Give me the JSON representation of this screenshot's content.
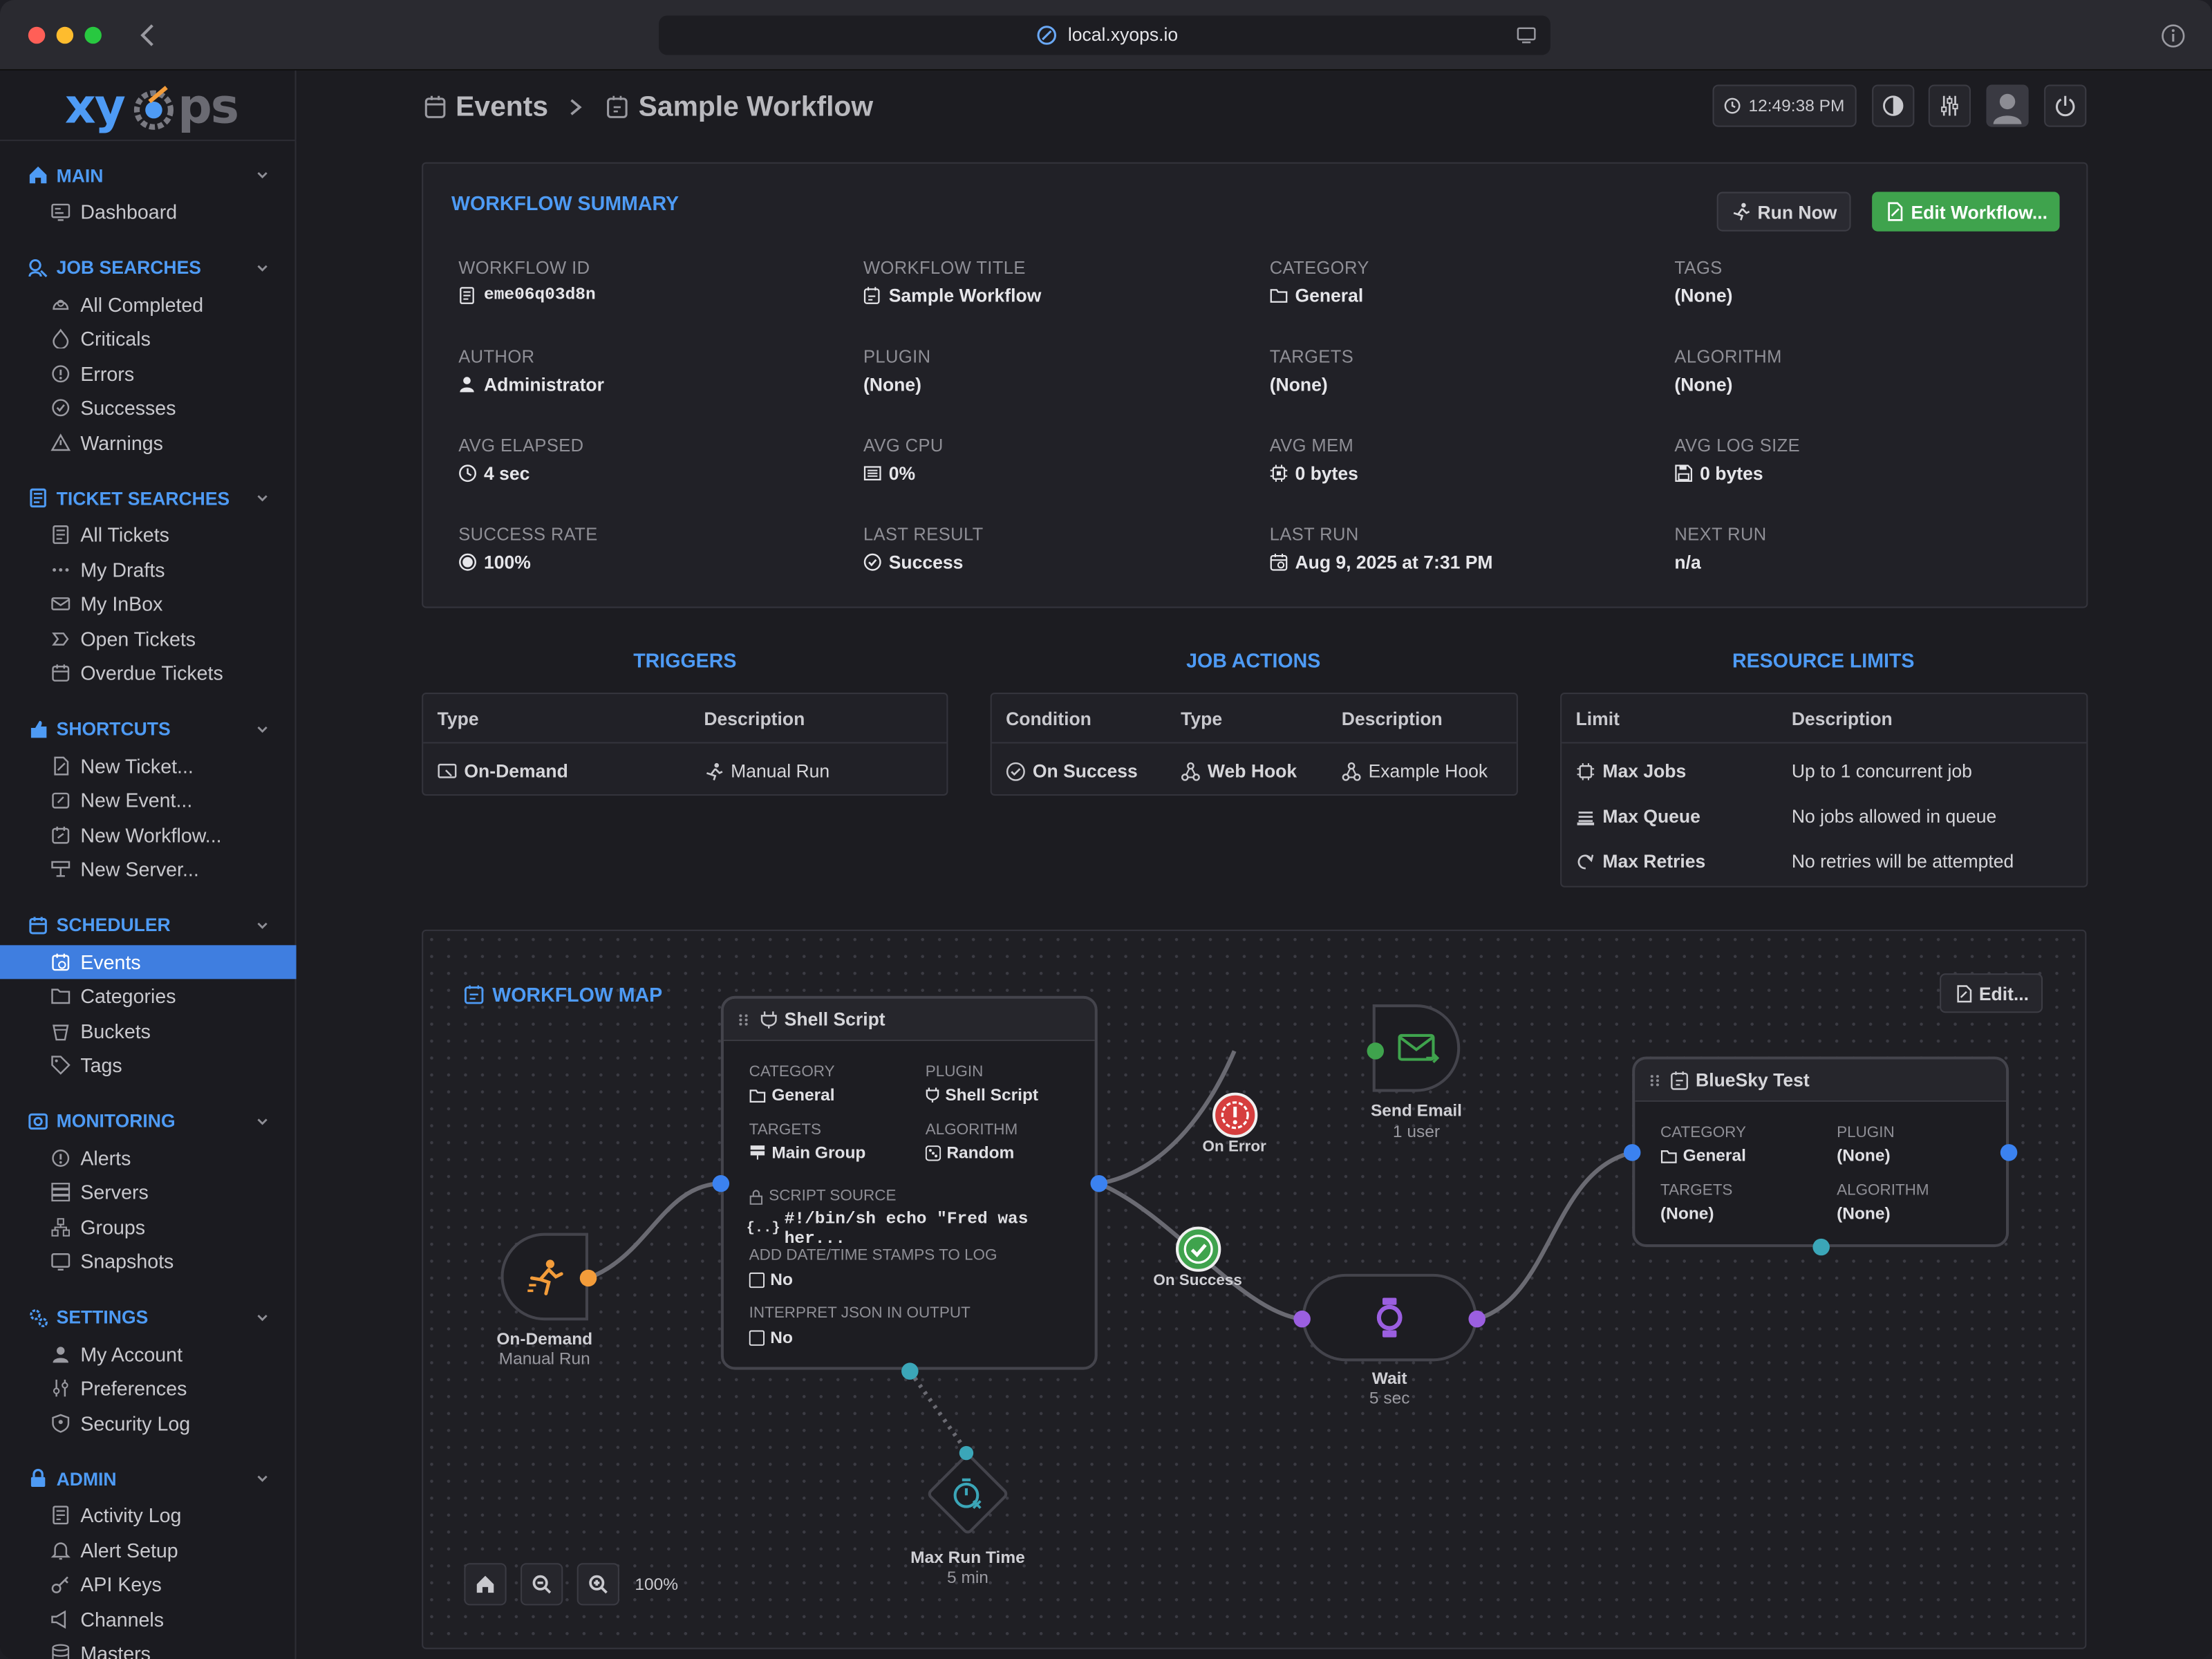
{
  "browser": {
    "url": "local.xyops.io"
  },
  "logo": {
    "text_a": "xy",
    "text_b": "ps"
  },
  "sidebar": {
    "sections": [
      {
        "id": "main",
        "label": "MAIN",
        "items": [
          "Dashboard"
        ]
      },
      {
        "id": "job_searches",
        "label": "JOB SEARCHES",
        "items": [
          "All Completed",
          "Criticals",
          "Errors",
          "Successes",
          "Warnings"
        ]
      },
      {
        "id": "ticket_searches",
        "label": "TICKET SEARCHES",
        "items": [
          "All Tickets",
          "My Drafts",
          "My InBox",
          "Open Tickets",
          "Overdue Tickets"
        ]
      },
      {
        "id": "shortcuts",
        "label": "SHORTCUTS",
        "items": [
          "New Ticket...",
          "New Event...",
          "New Workflow...",
          "New Server..."
        ]
      },
      {
        "id": "scheduler",
        "label": "SCHEDULER",
        "items": [
          "Events",
          "Categories",
          "Buckets",
          "Tags"
        ]
      },
      {
        "id": "monitoring",
        "label": "MONITORING",
        "items": [
          "Alerts",
          "Servers",
          "Groups",
          "Snapshots"
        ]
      },
      {
        "id": "settings",
        "label": "SETTINGS",
        "items": [
          "My Account",
          "Preferences",
          "Security Log"
        ]
      },
      {
        "id": "admin",
        "label": "ADMIN",
        "items": [
          "Activity Log",
          "Alert Setup",
          "API Keys",
          "Channels",
          "Masters"
        ]
      }
    ],
    "active_item": "Events"
  },
  "header": {
    "crumb1": "Events",
    "crumb2": "Sample Workflow",
    "clock": "12:49:38 PM"
  },
  "summary": {
    "title": "WORKFLOW SUMMARY",
    "run_now": "Run Now",
    "edit_workflow": "Edit Workflow...",
    "fields": [
      {
        "label": "WORKFLOW ID",
        "value": "eme06q03d8n",
        "icon": "id-icon"
      },
      {
        "label": "WORKFLOW TITLE",
        "value": "Sample Workflow",
        "icon": "workflow-icon"
      },
      {
        "label": "CATEGORY",
        "value": "General",
        "icon": "folder-icon"
      },
      {
        "label": "TAGS",
        "value": "(None)",
        "icon": ""
      },
      {
        "label": "AUTHOR",
        "value": "Administrator",
        "icon": "user-icon"
      },
      {
        "label": "PLUGIN",
        "value": "(None)",
        "icon": ""
      },
      {
        "label": "TARGETS",
        "value": "(None)",
        "icon": ""
      },
      {
        "label": "ALGORITHM",
        "value": "(None)",
        "icon": ""
      },
      {
        "label": "AVG ELAPSED",
        "value": "4 sec",
        "icon": "clock-icon"
      },
      {
        "label": "AVG CPU",
        "value": "0%",
        "icon": "cpu-icon"
      },
      {
        "label": "AVG MEM",
        "value": "0 bytes",
        "icon": "memory-icon"
      },
      {
        "label": "AVG LOG SIZE",
        "value": "0 bytes",
        "icon": "disk-icon"
      },
      {
        "label": "SUCCESS RATE",
        "value": "100%",
        "icon": "pie-icon"
      },
      {
        "label": "LAST RESULT",
        "value": "Success",
        "icon": "check-circle-icon"
      },
      {
        "label": "LAST RUN",
        "value": "Aug 9, 2025 at 7:31 PM",
        "icon": "calendar-icon"
      },
      {
        "label": "NEXT RUN",
        "value": "n/a",
        "icon": ""
      }
    ]
  },
  "triggers": {
    "title": "TRIGGERS",
    "col_type": "Type",
    "col_desc": "Description",
    "type": "On-Demand",
    "desc": "Manual Run"
  },
  "job_actions": {
    "title": "JOB ACTIONS",
    "col_cond": "Condition",
    "col_type": "Type",
    "col_desc": "Description",
    "cond": "On Success",
    "type": "Web Hook",
    "desc": "Example Hook"
  },
  "limits": {
    "title": "RESOURCE LIMITS",
    "col_limit": "Limit",
    "col_desc": "Description",
    "rows": [
      {
        "limit": "Max Jobs",
        "desc": "Up to 1 concurrent job"
      },
      {
        "limit": "Max Queue",
        "desc": "No jobs allowed in queue"
      },
      {
        "limit": "Max Retries",
        "desc": "No retries will be attempted"
      }
    ]
  },
  "map": {
    "title": "WORKFLOW MAP",
    "edit": "Edit...",
    "zoom": "100%",
    "shell": {
      "title": "Shell Script",
      "category_label": "CATEGORY",
      "category": "General",
      "plugin_label": "PLUGIN",
      "plugin": "Shell Script",
      "targets_label": "TARGETS",
      "targets": "Main Group",
      "algorithm_label": "ALGORITHM",
      "algorithm": "Random",
      "script_label": "SCRIPT SOURCE",
      "script": "#!/bin/sh echo \"Fred was her...",
      "stamps_label": "ADD DATE/TIME STAMPS TO LOG",
      "stamps": "No",
      "json_label": "INTERPRET JSON IN OUTPUT",
      "json": "No"
    },
    "bluesky": {
      "title": "BlueSky Test",
      "category_label": "CATEGORY",
      "category": "General",
      "plugin_label": "PLUGIN",
      "plugin": "(None)",
      "targets_label": "TARGETS",
      "targets": "(None)",
      "algorithm_label": "ALGORITHM",
      "algorithm": "(None)"
    },
    "trigger": {
      "title": "On-Demand",
      "sub": "Manual Run"
    },
    "email": {
      "title": "Send Email",
      "sub": "1 user"
    },
    "wait": {
      "title": "Wait",
      "sub": "5 sec"
    },
    "maxrun": {
      "title": "Max Run Time",
      "sub": "5 min"
    },
    "on_error": "On Error",
    "on_success": "On Success"
  },
  "colors": {
    "accent": "#4e9bf5",
    "active_bg": "#3f7ee0",
    "green": "#3fa34d",
    "orange": "#f39c3a",
    "purple": "#9b5fe0",
    "teal": "#3ba6b8",
    "error": "#d63e3e"
  }
}
